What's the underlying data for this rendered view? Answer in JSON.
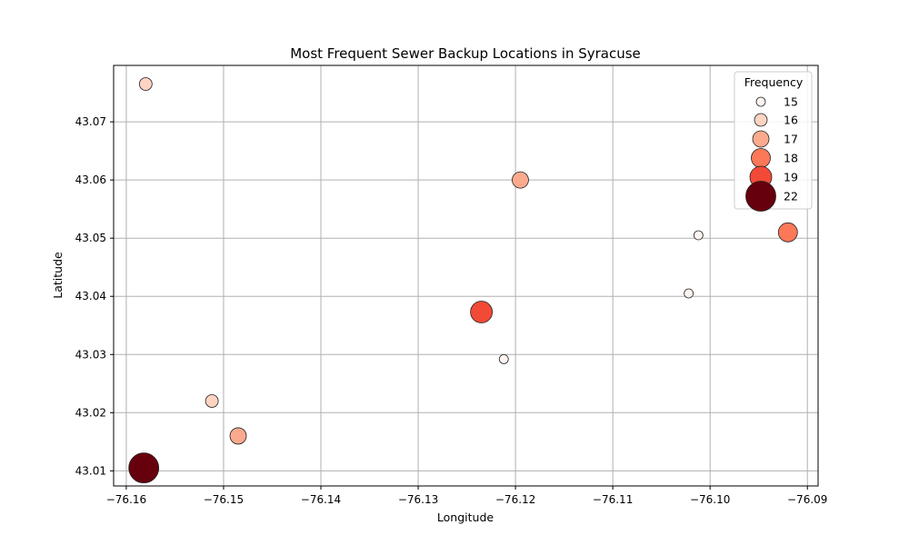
{
  "chart_data": {
    "type": "scatter",
    "title": "Most Frequent Sewer Backup Locations in Syracuse",
    "xlabel": "Longitude",
    "ylabel": "Latitude",
    "xlim": [
      -76.1613,
      -76.0889
    ],
    "ylim": [
      43.0074,
      43.0797
    ],
    "xticks": [
      -76.16,
      -76.15,
      -76.14,
      -76.13,
      -76.12,
      -76.11,
      -76.1,
      -76.09
    ],
    "xtick_labels": [
      "−76.16",
      "−76.15",
      "−76.14",
      "−76.13",
      "−76.12",
      "−76.11",
      "−76.10",
      "−76.09"
    ],
    "yticks": [
      43.01,
      43.02,
      43.03,
      43.04,
      43.05,
      43.06,
      43.07
    ],
    "ytick_labels": [
      "43.01",
      "43.02",
      "43.03",
      "43.04",
      "43.05",
      "43.06",
      "43.07"
    ],
    "grid": true,
    "size_encodes": "frequency",
    "color_encodes": "frequency",
    "points": [
      {
        "x": -76.158,
        "y": 43.0765,
        "frequency": 16
      },
      {
        "x": -76.1195,
        "y": 43.06,
        "frequency": 17
      },
      {
        "x": -76.1012,
        "y": 43.0505,
        "frequency": 15
      },
      {
        "x": -76.092,
        "y": 43.051,
        "frequency": 18
      },
      {
        "x": -76.1022,
        "y": 43.0405,
        "frequency": 15
      },
      {
        "x": -76.1235,
        "y": 43.0373,
        "frequency": 19
      },
      {
        "x": -76.1212,
        "y": 43.0292,
        "frequency": 15
      },
      {
        "x": -76.1512,
        "y": 43.022,
        "frequency": 16
      },
      {
        "x": -76.1485,
        "y": 43.016,
        "frequency": 17
      },
      {
        "x": -76.1582,
        "y": 43.0105,
        "frequency": 22
      }
    ],
    "legend": {
      "title": "Frequency",
      "position": "top-right",
      "entries": [
        {
          "label": "15",
          "frequency": 15
        },
        {
          "label": "16",
          "frequency": 16
        },
        {
          "label": "17",
          "frequency": 17
        },
        {
          "label": "18",
          "frequency": 18
        },
        {
          "label": "19",
          "frequency": 19
        },
        {
          "label": "22",
          "frequency": 22
        }
      ]
    },
    "colors": {
      "15": "#fff5f0",
      "16": "#fdd4c2",
      "17": "#fcaa8e",
      "18": "#fb7858",
      "19": "#f24a36",
      "22": "#67000d",
      "edge": "#222222",
      "grid": "#b0b0b0"
    }
  }
}
